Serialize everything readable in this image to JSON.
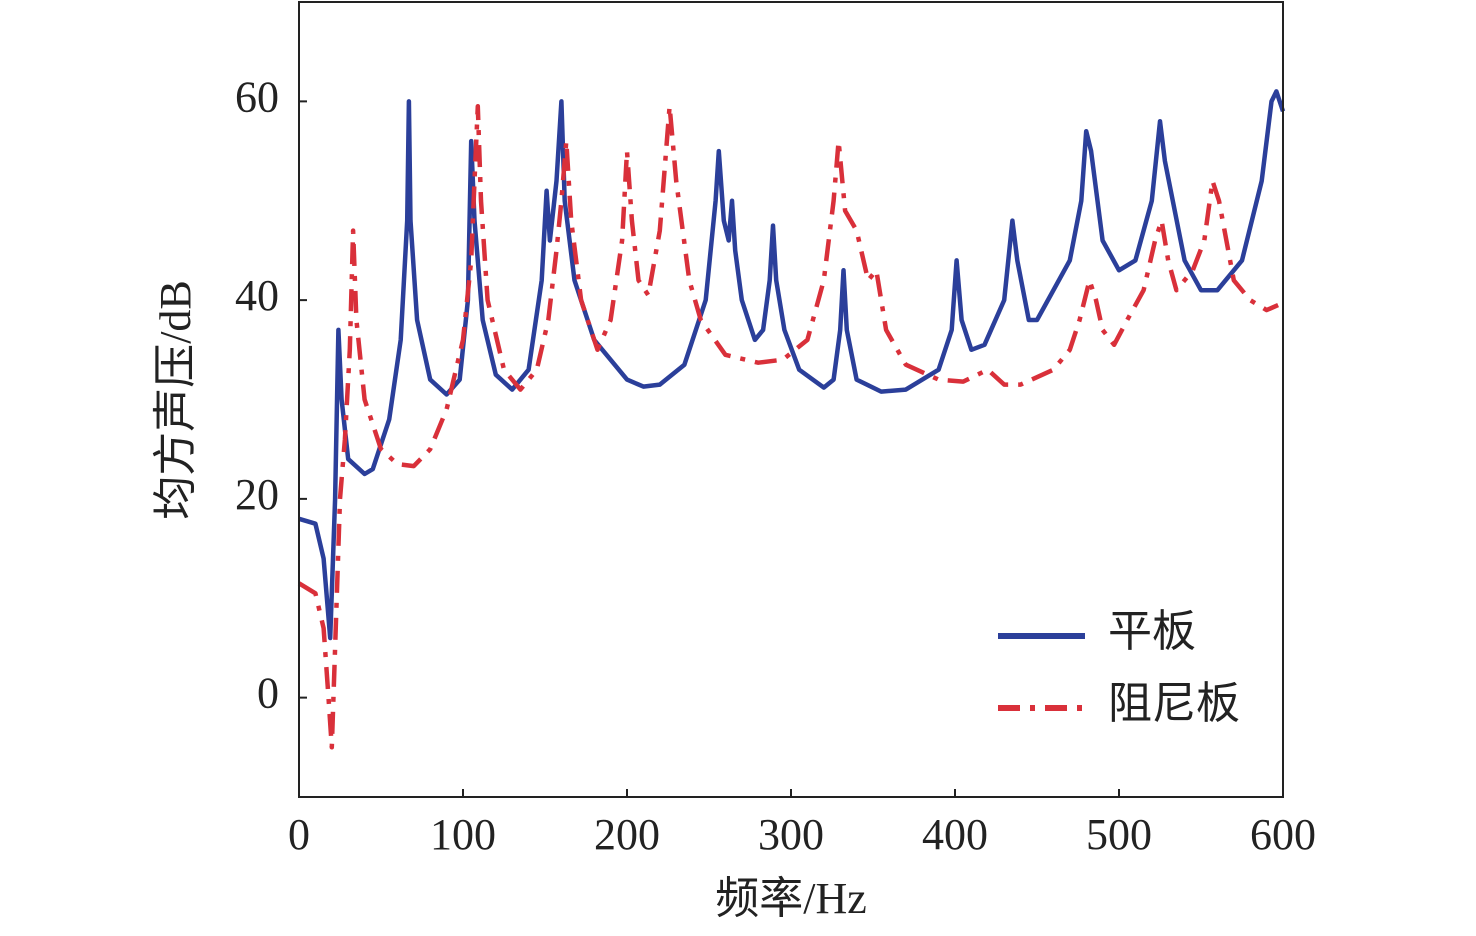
{
  "chart_data": {
    "type": "line",
    "xlabel": "频率/Hz",
    "ylabel": "均方声压/dB",
    "xlim": [
      0,
      600
    ],
    "xticks": [
      0,
      100,
      200,
      300,
      400,
      500,
      600
    ],
    "ylim": [
      -10,
      70
    ],
    "yticks": [
      0,
      20,
      40,
      60
    ],
    "legend": "lower right",
    "series": [
      {
        "name": "平板",
        "color": "#2b3f9a",
        "style": "solid",
        "x": [
          0,
          10,
          15,
          19,
          22,
          24,
          26,
          30,
          40,
          45,
          55,
          62,
          66,
          67,
          68,
          72,
          80,
          90,
          98,
          103,
          105,
          107,
          112,
          120,
          130,
          140,
          148,
          151,
          153,
          157,
          160,
          162,
          168,
          180,
          200,
          210,
          220,
          235,
          248,
          254,
          256,
          259,
          262,
          264,
          266,
          270,
          278,
          283,
          287,
          289,
          291,
          296,
          305,
          320,
          326,
          330,
          332,
          334,
          340,
          355,
          370,
          390,
          398,
          401,
          404,
          410,
          418,
          430,
          435,
          438,
          445,
          450,
          470,
          477,
          480,
          483,
          490,
          500,
          510,
          520,
          525,
          528,
          540,
          550,
          560,
          575,
          587,
          593,
          596,
          600
        ],
        "values": [
          18,
          17.5,
          14,
          6,
          20,
          37,
          30,
          24,
          22.5,
          23,
          28,
          36,
          48,
          60,
          48,
          38,
          32,
          30.5,
          32,
          40,
          56,
          48,
          38,
          32.5,
          31,
          33,
          42,
          51,
          46,
          52,
          60,
          50,
          42,
          36,
          32,
          31.3,
          31.5,
          33.5,
          40,
          50,
          55,
          48,
          46,
          50,
          45,
          40,
          36,
          37,
          42,
          47.5,
          42,
          37,
          33,
          31.2,
          32,
          37,
          43,
          37,
          32,
          30.8,
          31,
          33,
          37,
          44,
          38,
          35,
          35.5,
          40,
          48,
          44,
          38,
          38,
          44,
          50,
          57,
          55,
          46,
          43,
          44,
          50,
          58,
          54,
          44,
          41,
          41,
          44,
          52,
          60,
          61,
          59
        ]
      },
      {
        "name": "阻尼板",
        "color": "#d9303a",
        "style": "dashdot",
        "x": [
          0,
          10,
          15,
          18,
          20,
          22,
          25,
          28,
          31,
          33,
          35,
          40,
          50,
          60,
          70,
          80,
          90,
          100,
          105,
          107,
          109,
          111,
          115,
          125,
          135,
          145,
          152,
          157,
          160,
          163,
          166,
          172,
          182,
          190,
          197,
          200,
          203,
          207,
          213,
          220,
          226,
          230,
          238,
          245,
          260,
          280,
          295,
          310,
          320,
          326,
          329,
          333,
          340,
          347,
          352,
          358,
          370,
          390,
          405,
          420,
          430,
          440,
          460,
          470,
          476,
          482,
          486,
          490,
          497,
          505,
          515,
          522,
          526,
          530,
          535,
          545,
          552,
          557,
          561,
          570,
          580,
          590,
          597
        ],
        "values": [
          11.5,
          10.5,
          7,
          0,
          -5,
          5,
          20,
          26,
          35,
          47,
          38,
          30,
          25,
          23.5,
          23.3,
          25,
          29,
          36,
          44,
          52,
          59.5,
          50,
          40,
          33,
          31,
          33,
          38,
          45,
          50,
          56,
          48,
          40,
          35,
          38,
          46,
          55,
          48,
          42,
          40.5,
          47,
          59.5,
          52,
          42,
          38,
          34.5,
          33.7,
          34,
          36,
          42,
          50,
          56,
          49,
          47,
          42,
          43,
          37,
          33.5,
          32,
          31.8,
          33,
          31.5,
          31.5,
          33,
          35,
          38,
          42,
          40,
          37,
          35.5,
          38,
          41,
          46,
          48,
          44,
          41,
          43,
          46,
          52,
          50,
          42,
          40,
          39,
          39.5
        ]
      }
    ]
  }
}
